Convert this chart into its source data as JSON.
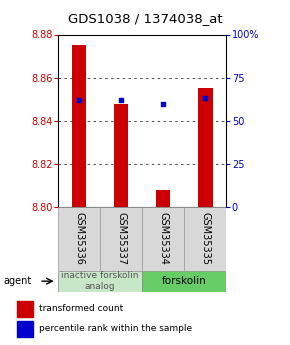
{
  "title": "GDS1038 / 1374038_at",
  "samples": [
    "GSM35336",
    "GSM35337",
    "GSM35334",
    "GSM35335"
  ],
  "bar_values": [
    8.875,
    8.848,
    8.808,
    8.855
  ],
  "percentile_values": [
    62,
    62,
    60,
    63
  ],
  "y_min": 8.8,
  "y_max": 8.88,
  "y_ticks": [
    8.8,
    8.82,
    8.84,
    8.86,
    8.88
  ],
  "pct_ticks": [
    0,
    25,
    50,
    75,
    100
  ],
  "bar_color": "#cc0000",
  "dot_color": "#0000cc",
  "groups": [
    {
      "label": "inactive forskolin\nanalog",
      "color": "#c8e6c8"
    },
    {
      "label": "forskolin",
      "color": "#66cc66"
    }
  ],
  "legend_red": "transformed count",
  "legend_blue": "percentile rank within the sample",
  "agent_label": "agent",
  "title_fontsize": 9.5,
  "tick_fontsize": 7,
  "sample_fontsize": 7,
  "group_fontsize": 6.5,
  "legend_fontsize": 6.5
}
